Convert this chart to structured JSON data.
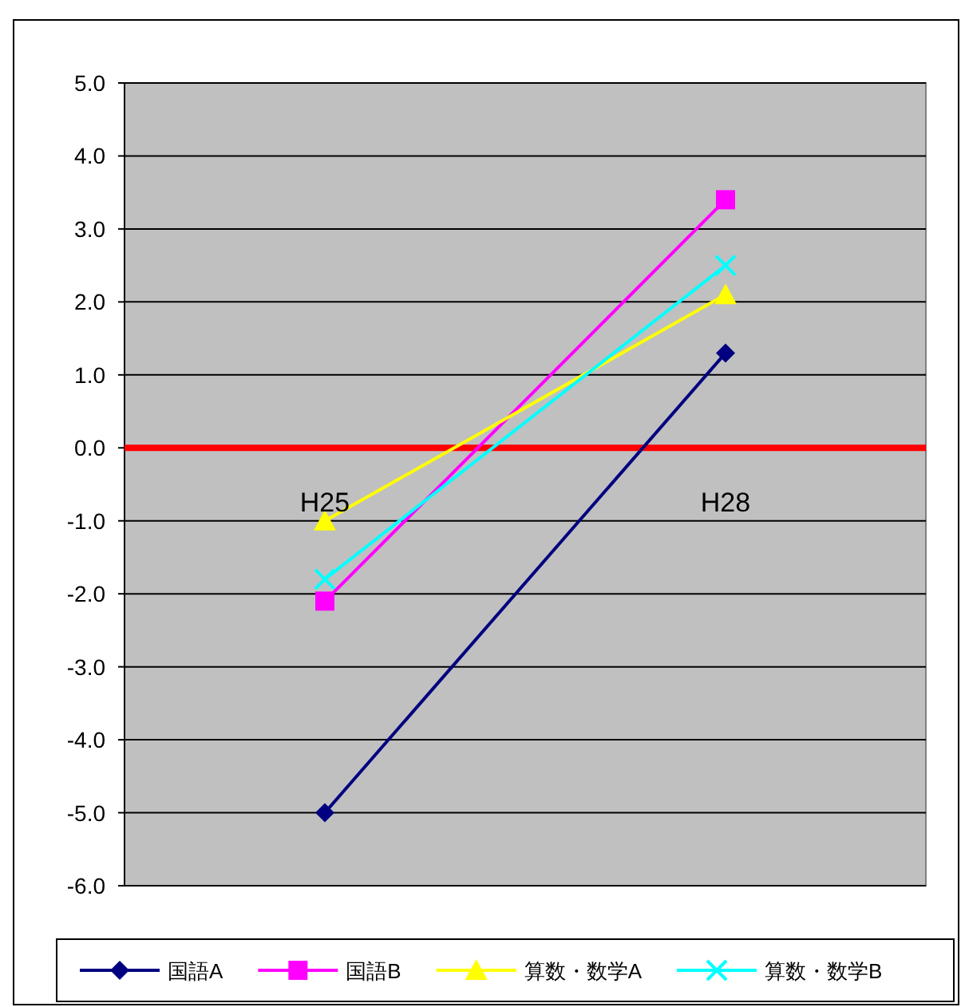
{
  "chart_data": {
    "type": "line",
    "categories": [
      "H25",
      "H28"
    ],
    "series": [
      {
        "name": "国語A",
        "color": "#000080",
        "marker": "diamond",
        "values": [
          -5.0,
          1.3
        ]
      },
      {
        "name": "国語B",
        "color": "#ff00ff",
        "marker": "square",
        "values": [
          -2.1,
          3.4
        ]
      },
      {
        "name": "算数・数学A",
        "color": "#ffff00",
        "marker": "triangle",
        "values": [
          -1.0,
          2.1
        ]
      },
      {
        "name": "算数・数学B",
        "color": "#00ffff",
        "marker": "cross",
        "values": [
          -1.8,
          2.5
        ]
      }
    ],
    "ylim": [
      -6,
      5
    ],
    "yticks": [
      {
        "value": -6,
        "label": "-6.0"
      },
      {
        "value": -5,
        "label": "-5.0"
      },
      {
        "value": -4,
        "label": "-4.0"
      },
      {
        "value": -3,
        "label": "-3.0"
      },
      {
        "value": -2,
        "label": "-2.0"
      },
      {
        "value": -1,
        "label": "-1.0"
      },
      {
        "value": 0,
        "label": "0.0"
      },
      {
        "value": 1,
        "label": "1.0"
      },
      {
        "value": 2,
        "label": "2.0"
      },
      {
        "value": 3,
        "label": "3.0"
      },
      {
        "value": 4,
        "label": "4.0"
      },
      {
        "value": 5,
        "label": "5.0"
      }
    ],
    "grid": "y",
    "legend": "bottom"
  }
}
